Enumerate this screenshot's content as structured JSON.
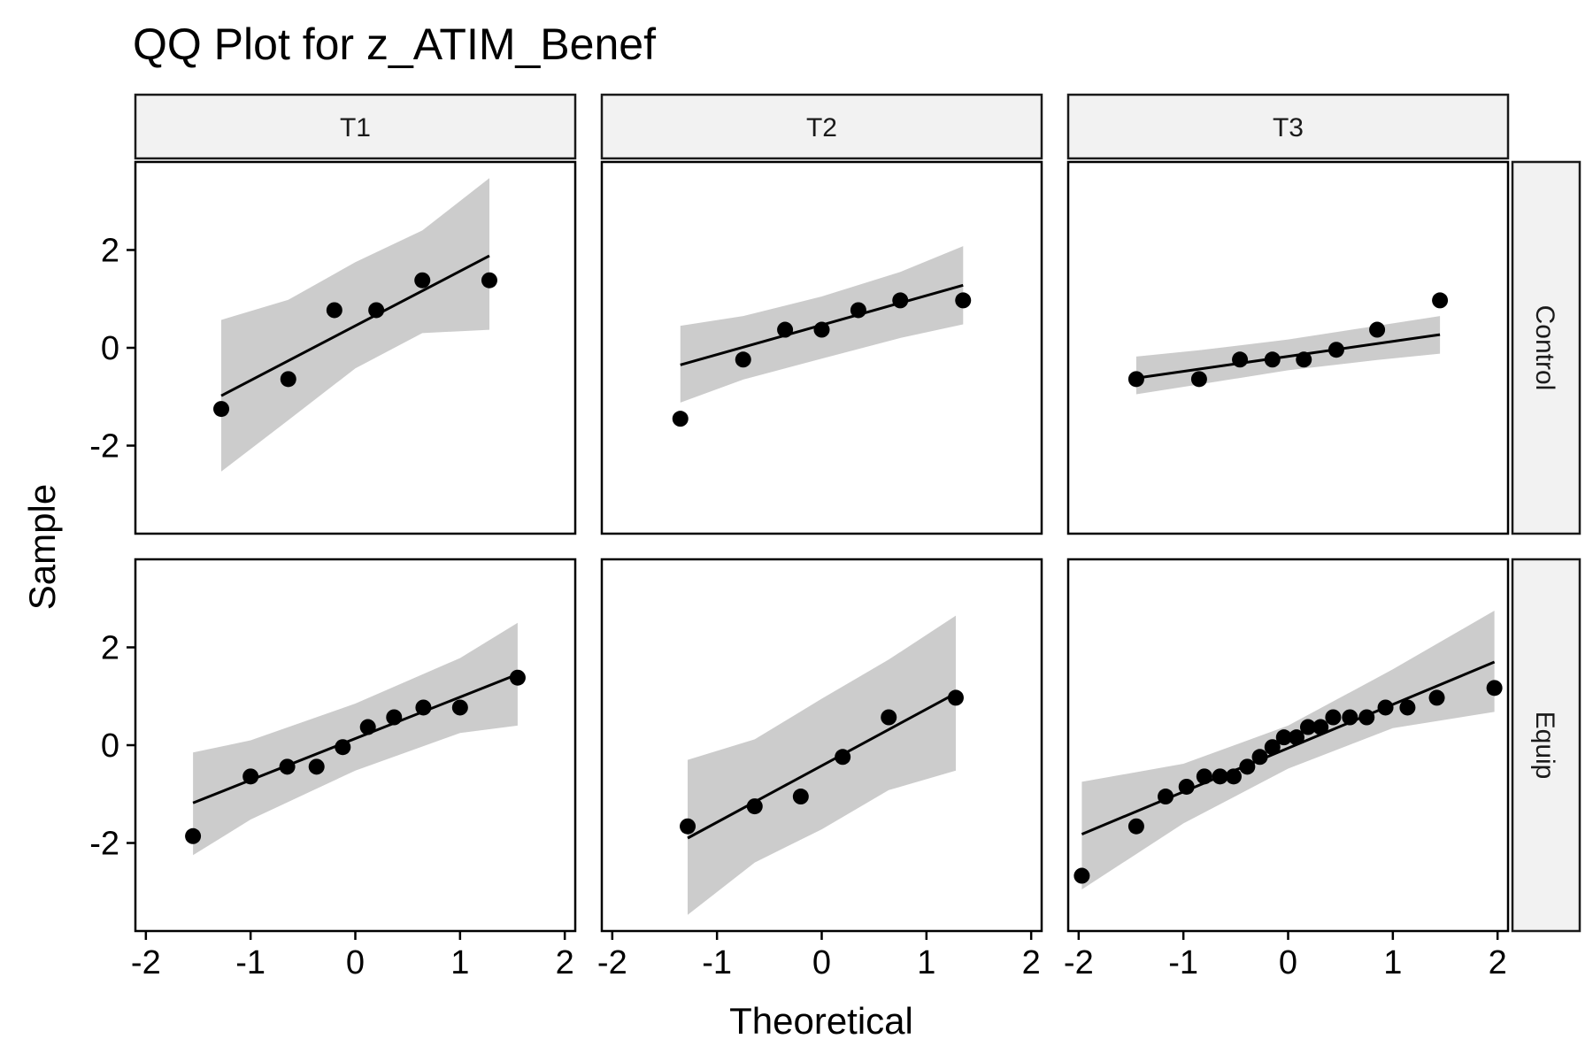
{
  "chart_data": {
    "type": "scatter",
    "title": "QQ Plot for z_ATIM_Benef",
    "xlabel": "Theoretical",
    "ylabel": "Sample",
    "xlim": [
      -2.1,
      2.1
    ],
    "ylim": [
      -3.8,
      3.8
    ],
    "x_ticks": [
      "-2",
      "-1",
      "0",
      "1",
      "2"
    ],
    "y_ticks": [
      "2",
      "0",
      "-2"
    ],
    "x_tick_values": [
      -2,
      -1,
      0,
      1,
      2
    ],
    "y_tick_values": [
      2,
      0,
      -2
    ],
    "col_facets": [
      "T1",
      "T2",
      "T3"
    ],
    "row_facets": [
      "Control",
      "Equip"
    ],
    "colors": {
      "points": "#000000",
      "line": "#000000",
      "band": "#cccccc",
      "strip": "#f2f2f2"
    },
    "panels": [
      {
        "col": "T1",
        "row": "Control",
        "points": [
          [
            -1.28,
            -1.25
          ],
          [
            -0.64,
            -0.64
          ],
          [
            -0.2,
            0.77
          ],
          [
            0.2,
            0.77
          ],
          [
            0.64,
            1.38
          ],
          [
            1.28,
            1.38
          ]
        ],
        "line": [
          [
            -1.28,
            -0.98
          ],
          [
            1.28,
            1.88
          ]
        ],
        "band": {
          "x": [
            -1.28,
            -0.64,
            0,
            0.64,
            1.28
          ],
          "upper": [
            0.57,
            0.98,
            1.75,
            2.4,
            3.47
          ],
          "lower": [
            -2.53,
            -1.48,
            -0.42,
            0.3,
            0.37
          ]
        }
      },
      {
        "col": "T2",
        "row": "Control",
        "points": [
          [
            -1.35,
            -1.45
          ],
          [
            -0.75,
            -0.24
          ],
          [
            -0.35,
            0.37
          ],
          [
            0,
            0.37
          ],
          [
            0.35,
            0.77
          ],
          [
            0.75,
            0.97
          ],
          [
            1.35,
            0.97
          ]
        ],
        "line": [
          [
            -1.35,
            -0.35
          ],
          [
            1.35,
            1.28
          ]
        ],
        "band": {
          "x": [
            -1.35,
            -0.75,
            0,
            0.75,
            1.35
          ],
          "upper": [
            0.45,
            0.65,
            1.05,
            1.55,
            2.08
          ],
          "lower": [
            -1.12,
            -0.65,
            -0.22,
            0.2,
            0.48
          ]
        }
      },
      {
        "col": "T3",
        "row": "Control",
        "points": [
          [
            -1.45,
            -0.64
          ],
          [
            -0.85,
            -0.64
          ],
          [
            -0.46,
            -0.24
          ],
          [
            -0.15,
            -0.24
          ],
          [
            0.15,
            -0.24
          ],
          [
            0.46,
            -0.04
          ],
          [
            0.85,
            0.37
          ],
          [
            1.45,
            0.97
          ]
        ],
        "line": [
          [
            -1.45,
            -0.62
          ],
          [
            1.45,
            0.27
          ]
        ],
        "band": {
          "x": [
            -1.45,
            -0.85,
            0,
            0.85,
            1.45
          ],
          "upper": [
            -0.18,
            -0.05,
            0.17,
            0.45,
            0.65
          ],
          "lower": [
            -0.95,
            -0.75,
            -0.46,
            -0.25,
            -0.12
          ]
        }
      },
      {
        "col": "T1",
        "row": "Equip",
        "points": [
          [
            -1.55,
            -1.86
          ],
          [
            -1.0,
            -0.64
          ],
          [
            -0.65,
            -0.44
          ],
          [
            -0.37,
            -0.44
          ],
          [
            -0.12,
            -0.04
          ],
          [
            0.12,
            0.37
          ],
          [
            0.37,
            0.57
          ],
          [
            0.65,
            0.77
          ],
          [
            1.0,
            0.77
          ],
          [
            1.55,
            1.38
          ]
        ],
        "line": [
          [
            -1.55,
            -1.18
          ],
          [
            1.55,
            1.45
          ]
        ],
        "band": {
          "x": [
            -1.55,
            -1.0,
            0,
            1.0,
            1.55
          ],
          "upper": [
            -0.15,
            0.1,
            0.85,
            1.78,
            2.5
          ],
          "lower": [
            -2.25,
            -1.52,
            -0.52,
            0.25,
            0.4
          ]
        }
      },
      {
        "col": "T2",
        "row": "Equip",
        "points": [
          [
            -1.28,
            -1.66
          ],
          [
            -0.64,
            -1.25
          ],
          [
            -0.2,
            -1.05
          ],
          [
            0.2,
            -0.24
          ],
          [
            0.64,
            0.57
          ],
          [
            1.28,
            0.97
          ]
        ],
        "line": [
          [
            -1.28,
            -1.9
          ],
          [
            1.28,
            1.06
          ]
        ],
        "band": {
          "x": [
            -1.28,
            -0.64,
            0,
            0.64,
            1.28
          ],
          "upper": [
            -0.3,
            0.12,
            0.95,
            1.75,
            2.65
          ],
          "lower": [
            -3.47,
            -2.4,
            -1.72,
            -0.92,
            -0.52
          ]
        }
      },
      {
        "col": "T3",
        "row": "Equip",
        "points": [
          [
            -1.97,
            -2.67
          ],
          [
            -1.45,
            -1.66
          ],
          [
            -1.17,
            -1.05
          ],
          [
            -0.97,
            -0.85
          ],
          [
            -0.8,
            -0.64
          ],
          [
            -0.65,
            -0.64
          ],
          [
            -0.52,
            -0.64
          ],
          [
            -0.39,
            -0.44
          ],
          [
            -0.27,
            -0.24
          ],
          [
            -0.15,
            -0.04
          ],
          [
            -0.04,
            0.16
          ],
          [
            0.08,
            0.16
          ],
          [
            0.19,
            0.37
          ],
          [
            0.31,
            0.37
          ],
          [
            0.43,
            0.57
          ],
          [
            0.59,
            0.57
          ],
          [
            0.75,
            0.57
          ],
          [
            0.93,
            0.77
          ],
          [
            1.14,
            0.77
          ],
          [
            1.42,
            0.97
          ],
          [
            1.97,
            1.17
          ]
        ],
        "line": [
          [
            -1.97,
            -1.82
          ],
          [
            1.97,
            1.7
          ]
        ],
        "band": {
          "x": [
            -1.97,
            -1.0,
            0,
            1.0,
            1.97
          ],
          "upper": [
            -0.75,
            -0.38,
            0.4,
            1.55,
            2.75
          ],
          "lower": [
            -2.95,
            -1.6,
            -0.48,
            0.35,
            0.68
          ]
        }
      }
    ]
  }
}
